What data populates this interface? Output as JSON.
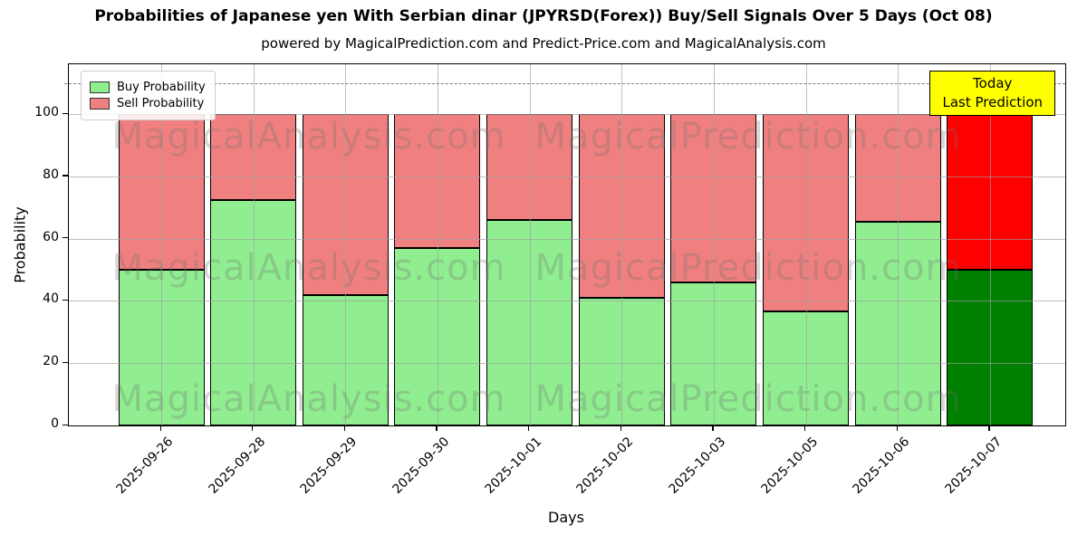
{
  "chart_data": {
    "type": "bar",
    "stacked": true,
    "title": "Probabilities of Japanese yen With Serbian dinar (JPYRSD(Forex)) Buy/Sell Signals Over 5 Days (Oct 08)",
    "subtitle": "powered by MagicalPrediction.com and Predict-Price.com and MagicalAnalysis.com",
    "xlabel": "Days",
    "ylabel": "Probability",
    "categories": [
      "2025-09-26",
      "2025-09-28",
      "2025-09-29",
      "2025-09-30",
      "2025-10-01",
      "2025-10-02",
      "2025-10-03",
      "2025-10-05",
      "2025-10-06",
      "2025-10-07"
    ],
    "series": [
      {
        "name": "Buy Probability",
        "color": "#90EE90",
        "today_color": "#008000",
        "values": [
          50,
          72.5,
          42,
          57,
          66,
          41,
          46,
          36.5,
          65.5,
          50
        ]
      },
      {
        "name": "Sell Probability",
        "color": "#F08080",
        "today_color": "#FF0000",
        "values": [
          50,
          27.5,
          58,
          43,
          34,
          59,
          54,
          63.5,
          34.5,
          50
        ]
      }
    ],
    "yticks": [
      0,
      20,
      40,
      60,
      80,
      100
    ],
    "ylim": [
      0,
      116
    ],
    "dashed_line_y": 110,
    "grid": true,
    "legend_position": "upper left",
    "annotation": {
      "line1": "Today",
      "line2": "Last Prediction",
      "bg_color": "#FFFF00"
    },
    "watermark": {
      "left_text": "MagicalAnalysis.com",
      "right_text": "MagicalPrediction.com"
    }
  }
}
